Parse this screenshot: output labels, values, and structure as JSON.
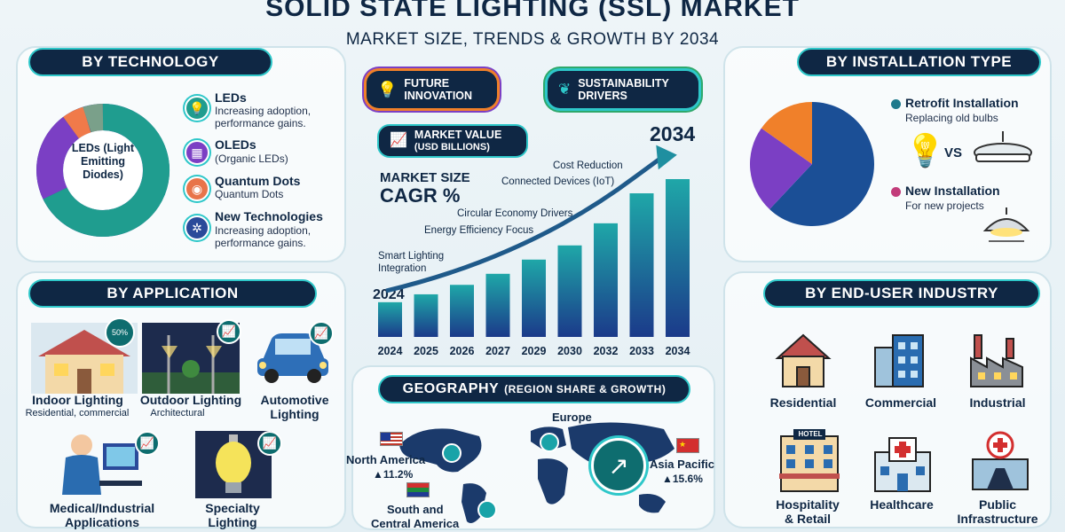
{
  "header": {
    "title": "SOLID STATE LIGHTING (SSL) MARKET",
    "subtitle": "MARKET SIZE, TRENDS & GROWTH BY 2034"
  },
  "technology": {
    "heading": "BY TECHNOLOGY",
    "donut_center": "LEDs (Light Emitting Diodes)",
    "items": [
      {
        "title": "LEDs",
        "desc1": "Increasing adoption,",
        "desc2": "performance gains."
      },
      {
        "title": "OLEDs",
        "desc1": "(Organic LEDs)",
        "desc2": ""
      },
      {
        "title": "Quantum Dots",
        "desc1": "Quantum Dots",
        "desc2": ""
      },
      {
        "title": "New Technologies",
        "desc1": "Increasing adoption,",
        "desc2": "performance gains."
      }
    ]
  },
  "center": {
    "future": "FUTURE INNOVATION",
    "sustain": "SUSTAINABILITY DRIVERS",
    "market_value_1": "MARKET VALUE",
    "market_value_2": "(USD BILLIONS)",
    "market_size": "MARKET SIZE",
    "cagr": "CAGR %",
    "year_start": "2024",
    "year_end": "2034",
    "trends": [
      "Cost Reduction",
      "Connected Devices (IoT)",
      "Circular Economy Drivers",
      "Energy Efficiency Focus",
      "Smart Lighting",
      "Integration"
    ],
    "bars": [
      0.22,
      0.27,
      0.33,
      0.4,
      0.49,
      0.58,
      0.72,
      0.91,
      1.0
    ],
    "bar_labels": [
      "2024",
      "2025",
      "2026",
      "2027",
      "2029",
      "2030",
      "2032",
      "2033",
      "2034"
    ]
  },
  "installation": {
    "heading": "BY INSTALLATION TYPE",
    "retrofit": "Retrofit Installation",
    "retrofit_desc": "Replacing old bulbs",
    "vs": "VS",
    "new": "New Installation",
    "new_desc": "For new projects",
    "pie_share": 0.62,
    "colors": {
      "retrofit": "#1b4f96",
      "new_a": "#7b3fc4",
      "new_b": "#f0802a"
    }
  },
  "application": {
    "heading": "BY APPLICATION",
    "badge_pct": "50%",
    "items": [
      {
        "title": "Indoor Lighting",
        "desc": "Residential, commercial"
      },
      {
        "title": "Outdoor Lighting",
        "desc": "Architectural"
      },
      {
        "title": "Automotive",
        "title2": "Lighting"
      },
      {
        "title": "Medical/Industrial",
        "title2": "Applications"
      },
      {
        "title": "Specialty",
        "title2": "Lighting"
      }
    ]
  },
  "geography": {
    "heading": "GEOGRAPHY",
    "heading_sub": "(REGION SHARE & GROWTH)",
    "north_america": "North America",
    "na_value": "▲11.2%",
    "europe": "Europe",
    "asia": "Asia Pacific",
    "asia_value": "▲15.6%",
    "south1": "South and",
    "south2": "Central America"
  },
  "enduser": {
    "heading": "BY END-USER INDUSTRY",
    "items": [
      {
        "title": "Residential"
      },
      {
        "title": "Commercial"
      },
      {
        "title": "Industrial"
      },
      {
        "title": "Hospitality",
        "title2": "& Retail",
        "sign": "HOTEL"
      },
      {
        "title": "Healthcare"
      },
      {
        "title": "Public",
        "title2": "Infrastructure"
      }
    ]
  }
}
